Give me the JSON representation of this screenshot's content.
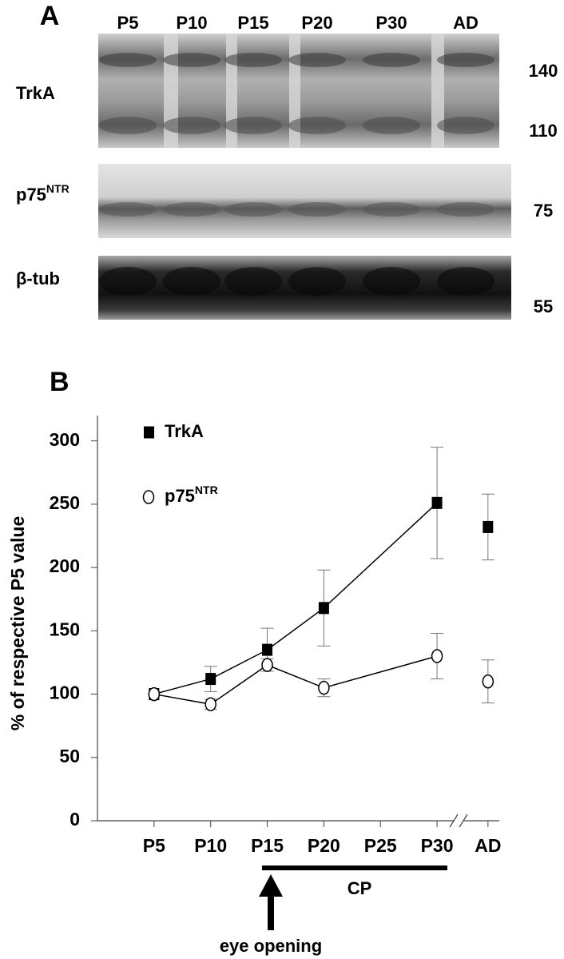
{
  "blot": {
    "panel_label": "A",
    "lanes": [
      "P5",
      "P10",
      "P15",
      "P20",
      "P30",
      "AD"
    ],
    "rows": [
      {
        "label": "TrkA",
        "weights": [
          "140",
          "110"
        ]
      },
      {
        "label": "p75",
        "label_sup": "NTR",
        "weights": [
          "75"
        ]
      },
      {
        "label": "β-tub",
        "weights": [
          "55"
        ]
      }
    ]
  },
  "chart_data": {
    "type": "line",
    "panel_label": "B",
    "ylabel": "% of respective P5 value",
    "xlim": [
      0,
      35.5
    ],
    "xticks": [
      {
        "value": 5,
        "label": "P5"
      },
      {
        "value": 10,
        "label": "P10"
      },
      {
        "value": 15,
        "label": "P15"
      },
      {
        "value": 20,
        "label": "P20"
      },
      {
        "value": 25,
        "label": "P25"
      },
      {
        "value": 30,
        "label": "P30"
      },
      {
        "value": 34.5,
        "label": "AD"
      }
    ],
    "ylim": [
      0,
      320
    ],
    "yticks": [
      0,
      50,
      100,
      150,
      200,
      250,
      300
    ],
    "grid": false,
    "series": [
      {
        "name": "TrkA",
        "marker": "square",
        "color": "#000000",
        "x": [
          5,
          10,
          15,
          20,
          30
        ],
        "values": [
          100,
          112,
          135,
          168,
          251
        ],
        "errors": [
          0,
          10,
          17,
          30,
          44
        ],
        "adult": {
          "value": 232,
          "error": 26
        }
      },
      {
        "name": "p75",
        "name_sup": "NTR",
        "marker": "circle",
        "color": "#000000",
        "x": [
          5,
          10,
          15,
          20,
          30
        ],
        "values": [
          100,
          92,
          123,
          105,
          130
        ],
        "errors": [
          0,
          4,
          5,
          7,
          18
        ],
        "adult": {
          "value": 110,
          "error": 17
        }
      }
    ],
    "annotations": {
      "period": "CP",
      "event": "eye opening"
    }
  }
}
